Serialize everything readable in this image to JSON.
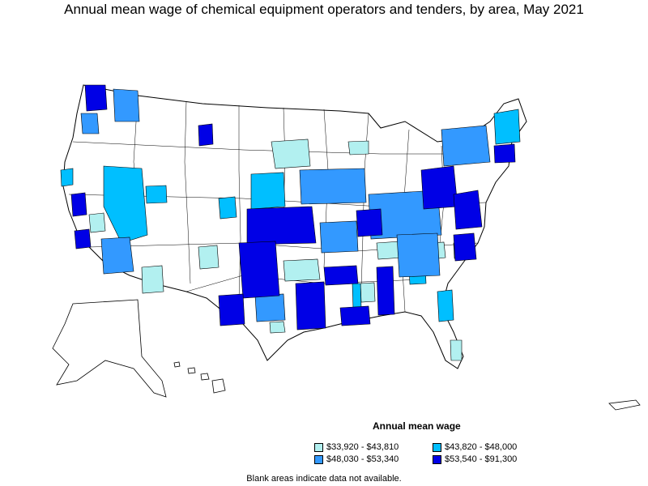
{
  "title": "Annual mean wage of chemical equipment operators and tenders, by area, May 2021",
  "legend": {
    "title": "Annual mean wage",
    "items": [
      {
        "label": "$33,920 - $43,810",
        "color": "#b2f0f0"
      },
      {
        "label": "$48,030 - $53,340",
        "color": "#3399ff"
      },
      {
        "label": "$43,820 - $48,000",
        "color": "#00bfff"
      },
      {
        "label": "$53,540 - $91,300",
        "color": "#0000e6"
      }
    ]
  },
  "footnote": "Blank areas indicate data not available.",
  "colors": {
    "no_data": "#ffffff",
    "border": "#000000"
  }
}
